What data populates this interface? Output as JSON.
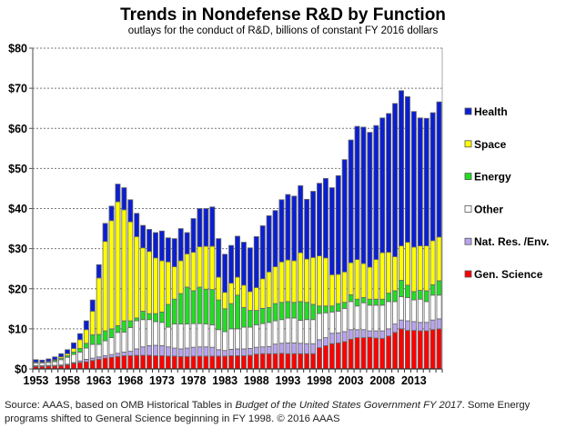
{
  "chart_data": {
    "type": "bar",
    "stacked": true,
    "title": "Trends in Nondefense R&D by Function",
    "subtitle": "outlays for the conduct of R&D, billions of constant FY 2016 dollars",
    "xlabel": "",
    "ylabel": "",
    "ylim": [
      0,
      80
    ],
    "y_ticks": [
      "$0",
      "$10",
      "$20",
      "$30",
      "$40",
      "$50",
      "$60",
      "$70",
      "$80"
    ],
    "x_tick_labels": [
      "1953",
      "1958",
      "1963",
      "1968",
      "1973",
      "1978",
      "1983",
      "1988",
      "1993",
      "1998",
      "2003",
      "2008",
      "2013"
    ],
    "grid": "horizontal dashed",
    "legend_position": "right",
    "categories": [
      1953,
      1954,
      1955,
      1956,
      1957,
      1958,
      1959,
      1960,
      1961,
      1962,
      1963,
      1964,
      1965,
      1966,
      1967,
      1968,
      1969,
      1970,
      1971,
      1972,
      1973,
      1974,
      1975,
      1976,
      1977,
      1978,
      1979,
      1980,
      1981,
      1982,
      1983,
      1984,
      1985,
      1986,
      1987,
      1988,
      1989,
      1990,
      1991,
      1992,
      1993,
      1994,
      1995,
      1996,
      1997,
      1998,
      1999,
      2000,
      2001,
      2002,
      2003,
      2004,
      2005,
      2006,
      2007,
      2008,
      2009,
      2010,
      2011,
      2012,
      2013,
      2014,
      2015,
      2016,
      2017
    ],
    "series": [
      {
        "name": "Gen. Science",
        "color": "#ff0000",
        "values": [
          0.6,
          0.6,
          0.7,
          0.7,
          0.8,
          1.0,
          1.4,
          1.6,
          1.8,
          2.1,
          2.4,
          2.7,
          2.9,
          3.1,
          3.3,
          3.3,
          3.4,
          3.4,
          3.4,
          3.3,
          3.3,
          3.2,
          3.2,
          3.1,
          3.1,
          3.2,
          3.2,
          3.2,
          3.2,
          3.2,
          3.2,
          3.3,
          3.3,
          3.3,
          3.4,
          3.7,
          3.8,
          3.8,
          3.8,
          3.9,
          3.8,
          3.8,
          3.8,
          3.8,
          3.8,
          5.3,
          5.8,
          6.3,
          6.5,
          6.8,
          7.4,
          7.8,
          7.8,
          7.9,
          7.7,
          7.6,
          8.2,
          9.1,
          10.0,
          9.6,
          9.6,
          9.5,
          9.5,
          9.8,
          10.0
        ]
      },
      {
        "name": "Nat. Res. /Env.",
        "color": "#b9a3f0",
        "values": [
          0.2,
          0.2,
          0.2,
          0.2,
          0.2,
          0.2,
          0.2,
          0.4,
          0.6,
          0.6,
          0.6,
          0.6,
          0.7,
          0.8,
          0.9,
          1.1,
          1.6,
          2.1,
          2.4,
          2.6,
          2.5,
          2.3,
          2.0,
          1.9,
          2.1,
          2.2,
          2.3,
          2.3,
          2.2,
          1.6,
          1.4,
          1.6,
          1.7,
          1.7,
          1.7,
          1.7,
          1.7,
          1.8,
          2.4,
          2.5,
          2.7,
          2.7,
          2.6,
          2.5,
          2.5,
          2.0,
          2.0,
          2.6,
          2.5,
          2.5,
          2.4,
          2.0,
          2.0,
          1.6,
          1.8,
          1.9,
          1.8,
          2.1,
          2.2,
          2.4,
          2.2,
          2.1,
          2.1,
          2.4,
          2.5
        ]
      },
      {
        "name": "Other",
        "color": "#ffffff",
        "values": [
          0.7,
          0.7,
          0.7,
          0.9,
          1.3,
          1.7,
          2.0,
          2.2,
          2.8,
          3.4,
          3.1,
          3.7,
          4.2,
          5.2,
          5.0,
          5.9,
          7.0,
          6.8,
          6.5,
          5.9,
          5.8,
          4.9,
          6.0,
          6.2,
          6.0,
          5.9,
          5.8,
          5.7,
          5.6,
          5.0,
          4.7,
          5.1,
          5.0,
          5.4,
          5.3,
          5.6,
          5.8,
          6.0,
          5.8,
          5.9,
          6.2,
          6.2,
          5.7,
          6.0,
          6.0,
          6.5,
          6.2,
          5.3,
          5.4,
          5.8,
          7.0,
          5.9,
          6.7,
          6.4,
          6.4,
          6.4,
          6.8,
          5.6,
          5.8,
          5.8,
          5.4,
          5.8,
          5.2,
          6.2,
          5.9
        ]
      },
      {
        "name": "Energy",
        "color": "#22dd22",
        "values": [
          0.1,
          0.1,
          0.2,
          0.3,
          0.3,
          0.4,
          0.6,
          0.9,
          1.2,
          2.4,
          2.5,
          2.5,
          2.2,
          1.7,
          2.8,
          1.7,
          0.7,
          2.1,
          1.5,
          2.0,
          2.6,
          5.7,
          6.2,
          7.6,
          9.2,
          8.2,
          9.1,
          8.7,
          8.8,
          7.4,
          5.7,
          6.3,
          8.4,
          4.9,
          4.2,
          3.6,
          3.8,
          3.7,
          4.3,
          4.3,
          4.1,
          3.9,
          4.7,
          4.3,
          3.8,
          1.9,
          1.7,
          1.5,
          1.9,
          1.5,
          1.7,
          1.7,
          1.3,
          1.5,
          1.5,
          1.5,
          2.1,
          2.7,
          4.1,
          3.1,
          2.1,
          2.2,
          2.7,
          2.6,
          3.6
        ]
      },
      {
        "name": "Space",
        "color": "#ffff00",
        "values": [
          0.1,
          0.1,
          0.1,
          0.2,
          0.4,
          0.5,
          0.9,
          2.2,
          3.4,
          5.9,
          14.1,
          22.3,
          27.0,
          30.9,
          27.7,
          24.7,
          20.3,
          15.8,
          15.5,
          13.9,
          12.8,
          10.6,
          8.1,
          8.2,
          8.3,
          9.6,
          10.1,
          10.7,
          10.8,
          5.7,
          4.1,
          5.1,
          4.5,
          5.6,
          4.7,
          5.7,
          7.4,
          8.9,
          9.2,
          10.1,
          10.4,
          10.4,
          12.2,
          10.8,
          11.7,
          12.5,
          12.0,
          7.8,
          7.3,
          7.6,
          8.0,
          9.9,
          8.5,
          8.0,
          9.9,
          11.6,
          10.2,
          8.5,
          8.6,
          10.7,
          11.1,
          11.1,
          11.2,
          11.0,
          10.9
        ]
      },
      {
        "name": "Health",
        "color": "#0a1ed2",
        "values": [
          0.6,
          0.5,
          0.6,
          0.7,
          0.8,
          1.0,
          1.4,
          1.5,
          2.2,
          2.8,
          3.3,
          4.5,
          3.6,
          4.4,
          5.5,
          5.5,
          5.8,
          5.6,
          5.5,
          6.3,
          7.4,
          6.0,
          7.0,
          8.0,
          5.3,
          8.4,
          9.5,
          9.4,
          9.8,
          9.6,
          9.5,
          9.4,
          10.2,
          10.7,
          10.9,
          12.7,
          13.2,
          14.0,
          14.0,
          15.5,
          16.3,
          16.1,
          16.7,
          14.9,
          16.5,
          18.1,
          19.8,
          21.7,
          24.6,
          28.0,
          30.6,
          33.2,
          34.0,
          33.6,
          33.4,
          33.6,
          34.6,
          38.2,
          38.7,
          36.3,
          33.8,
          31.9,
          31.8,
          31.9,
          33.7
        ]
      }
    ],
    "legend_order": [
      "Health",
      "Space",
      "Energy",
      "Other",
      "Nat. Res. /Env.",
      "Gen. Science"
    ]
  },
  "footer": {
    "source_prefix": "Source: AAAS, based on OMB Historical Tables in ",
    "source_italic": "Budget of the United States Government FY 2017",
    "source_suffix": ". Some Energy programs shifted to General Science beginning in FY 1998. © 2016 AAAS"
  }
}
